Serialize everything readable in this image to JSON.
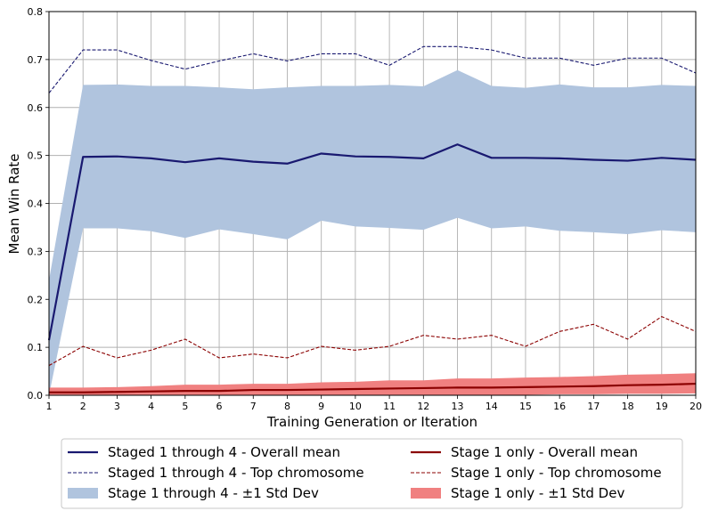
{
  "chart_data": {
    "type": "line",
    "xlabel": "Training Generation or Iteration",
    "ylabel": "Mean Win Rate",
    "xlim": [
      1,
      20
    ],
    "ylim": [
      0,
      0.8
    ],
    "grid": true,
    "x": [
      1,
      2,
      3,
      4,
      5,
      6,
      7,
      8,
      9,
      10,
      11,
      12,
      13,
      14,
      15,
      16,
      17,
      18,
      19,
      20
    ],
    "x_ticks": [
      1,
      2,
      3,
      4,
      5,
      6,
      7,
      8,
      9,
      10,
      11,
      12,
      13,
      14,
      15,
      16,
      17,
      18,
      19,
      20
    ],
    "y_ticks": [
      0.0,
      0.1,
      0.2,
      0.3,
      0.4,
      0.5,
      0.6,
      0.7,
      0.8
    ],
    "y_tick_labels": [
      "0.0",
      "0.1",
      "0.2",
      "0.3",
      "0.4",
      "0.5",
      "0.6",
      "0.7",
      "0.8"
    ],
    "legend_position": "bottom",
    "series": [
      {
        "name": "Staged 1 through 4 - Overall mean",
        "style": "solid",
        "color": "#191970",
        "values": [
          0.115,
          0.497,
          0.498,
          0.494,
          0.486,
          0.494,
          0.487,
          0.483,
          0.504,
          0.498,
          0.497,
          0.494,
          0.523,
          0.495,
          0.495,
          0.494,
          0.491,
          0.489,
          0.495,
          0.491
        ]
      },
      {
        "name": "Staged 1 through 4 - Top chromosome",
        "style": "dashed",
        "color": "#191970",
        "values": [
          0.63,
          0.72,
          0.72,
          0.698,
          0.68,
          0.697,
          0.712,
          0.697,
          0.712,
          0.712,
          0.688,
          0.727,
          0.727,
          0.72,
          0.703,
          0.703,
          0.688,
          0.703,
          0.703,
          0.672
        ]
      },
      {
        "name": "Stage 1 through 4 - ±1 Std Dev",
        "style": "band",
        "color": "#b0c4de",
        "upper": [
          0.24,
          0.647,
          0.648,
          0.645,
          0.645,
          0.642,
          0.638,
          0.642,
          0.645,
          0.645,
          0.647,
          0.644,
          0.678,
          0.645,
          0.641,
          0.648,
          0.642,
          0.642,
          0.647,
          0.645
        ],
        "lower": [
          0.0,
          0.348,
          0.348,
          0.342,
          0.328,
          0.346,
          0.336,
          0.325,
          0.364,
          0.352,
          0.349,
          0.345,
          0.37,
          0.348,
          0.352,
          0.343,
          0.34,
          0.336,
          0.344,
          0.34
        ]
      },
      {
        "name": "Stage 1 only - Overall mean",
        "style": "solid",
        "color": "#8b0000",
        "values": [
          0.006,
          0.006,
          0.007,
          0.008,
          0.009,
          0.009,
          0.011,
          0.011,
          0.012,
          0.013,
          0.014,
          0.015,
          0.016,
          0.016,
          0.017,
          0.018,
          0.019,
          0.021,
          0.022,
          0.024
        ]
      },
      {
        "name": "Stage 1 only - Top chromosome",
        "style": "dashed",
        "color": "#8b0000",
        "values": [
          0.062,
          0.102,
          0.078,
          0.094,
          0.117,
          0.078,
          0.086,
          0.078,
          0.102,
          0.094,
          0.102,
          0.125,
          0.117,
          0.125,
          0.102,
          0.133,
          0.148,
          0.117,
          0.164,
          0.133
        ]
      },
      {
        "name": "Stage 1 only - ±1 Std Dev",
        "style": "band",
        "color": "#f08080",
        "upper": [
          0.016,
          0.016,
          0.017,
          0.019,
          0.022,
          0.022,
          0.024,
          0.024,
          0.027,
          0.028,
          0.031,
          0.031,
          0.035,
          0.035,
          0.037,
          0.038,
          0.04,
          0.043,
          0.044,
          0.046
        ],
        "lower": [
          0.0,
          0.0,
          0.0,
          0.0,
          0.0,
          0.0,
          0.0,
          0.0,
          0.0,
          0.0,
          0.0,
          0.0,
          0.0,
          0.001,
          0.001,
          0.002,
          0.002,
          0.003,
          0.003,
          0.004
        ]
      }
    ],
    "legend": [
      {
        "label": "Staged 1 through 4 - Overall mean",
        "series": 0
      },
      {
        "label": "Stage 1 only - Overall mean",
        "series": 3
      },
      {
        "label": "Staged 1 through 4 - Top chromosome",
        "series": 1
      },
      {
        "label": "Stage 1 only - Top chromosome",
        "series": 4
      },
      {
        "label": "Stage 1 through 4 - ±1 Std Dev",
        "series": 2
      },
      {
        "label": "Stage 1 only - ±1 Std Dev",
        "series": 5
      }
    ]
  }
}
